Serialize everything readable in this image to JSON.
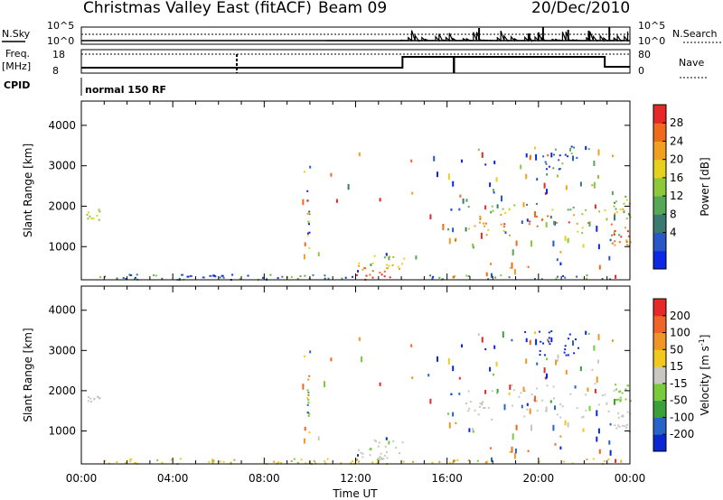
{
  "header": {
    "title": "Christmas Valley East (fitACF)",
    "beam": "Beam 09",
    "date": "20/Dec/2010"
  },
  "top_panels": {
    "nsky_label": "N.Sky",
    "nsky_ticks": [
      "10^5",
      "10^0"
    ],
    "nsearch_label": "N.Search",
    "nsearch_ticks": [
      "10^5",
      "10^0"
    ],
    "freq_label": "Freq.",
    "freq_unit": "[MHz]",
    "freq_ticks": [
      "18",
      "8"
    ],
    "nave_label": "Nave",
    "nave_ticks": [
      "80",
      "0"
    ],
    "cpid_label": "CPID",
    "cpid_value": "normal 150 RF"
  },
  "chart_data": [
    {
      "type": "heatmap",
      "name_role": "power-panel",
      "xlabel": "",
      "ylabel": "Slant Range [km]",
      "x_range_hours": [
        0,
        24
      ],
      "ylim": [
        180,
        4600
      ],
      "yticks": [
        "4000",
        "3000",
        "2000",
        "1000"
      ],
      "colorbar": {
        "label": "Power [dB]",
        "ticks": [
          "28",
          "24",
          "20",
          "16",
          "12",
          "8",
          "4"
        ],
        "colors": [
          "#0a28e6",
          "#2858c8",
          "#3a7a70",
          "#55a855",
          "#8cc83a",
          "#e6d21e",
          "#f0a01e",
          "#f06a1e",
          "#e62828"
        ]
      }
    },
    {
      "type": "heatmap",
      "name_role": "velocity-panel",
      "xlabel": "Time UT",
      "ylabel": "Slant Range [km]",
      "x_range_hours": [
        0,
        24
      ],
      "ylim": [
        180,
        4600
      ],
      "xticks": [
        "00:00",
        "04:00",
        "08:00",
        "12:00",
        "16:00",
        "20:00",
        "00:00"
      ],
      "yticks": [
        "4000",
        "3000",
        "2000",
        "1000"
      ],
      "colorbar": {
        "label": "Velocity [m s",
        "label_sup": "-1",
        "label_end": "]",
        "ticks": [
          "200",
          "100",
          "50",
          "15",
          "-15",
          "-50",
          "-100",
          "-200"
        ],
        "colors": [
          "#0a28d2",
          "#2864c8",
          "#3aa03a",
          "#78cc3a",
          "#c8c8c0",
          "#f0c81e",
          "#f09628",
          "#f06428",
          "#e62828"
        ]
      }
    }
  ]
}
